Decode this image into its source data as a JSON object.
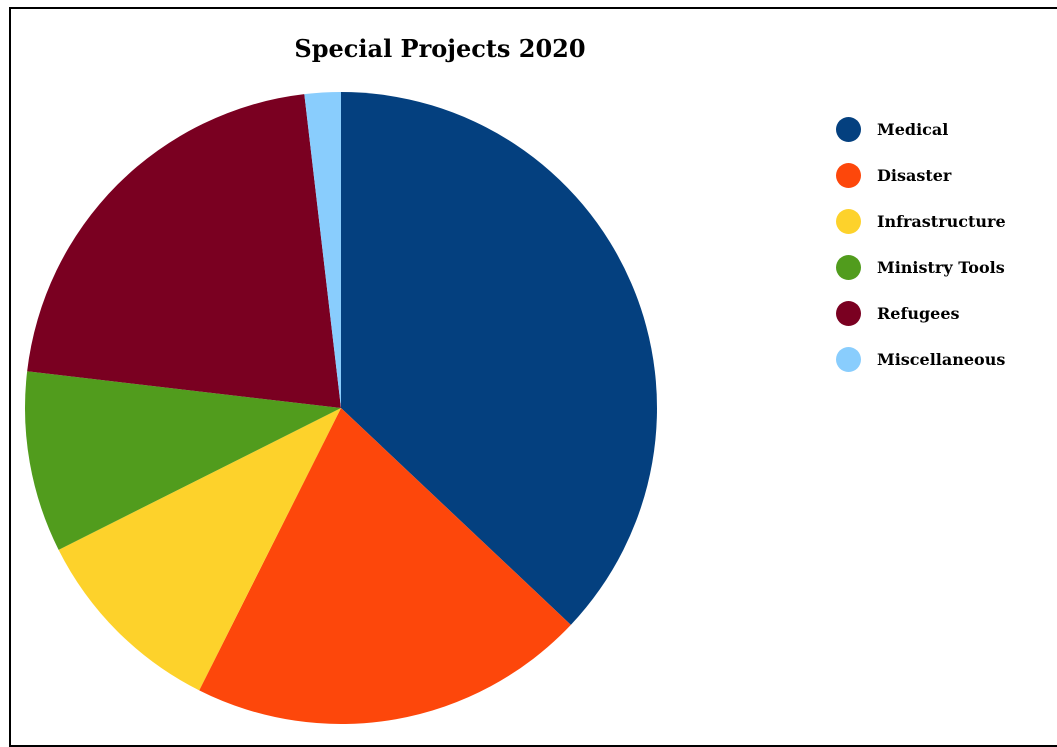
{
  "chart_data": {
    "type": "pie",
    "title": "Special Projects 2020",
    "legend_position": "right",
    "slices": [
      {
        "label": "Medical",
        "value": 40,
        "color": "#04407f"
      },
      {
        "label": "Disaster",
        "value": 22,
        "color": "#fd470b"
      },
      {
        "label": "Infrastructure",
        "value": 11,
        "color": "#fdd22b"
      },
      {
        "label": "Ministry Tools",
        "value": 10,
        "color": "#519c1d"
      },
      {
        "label": "Refugees",
        "value": 23,
        "color": "#7a0021"
      },
      {
        "label": "Miscellaneous",
        "value": 2,
        "color": "#89cdfd"
      }
    ]
  }
}
